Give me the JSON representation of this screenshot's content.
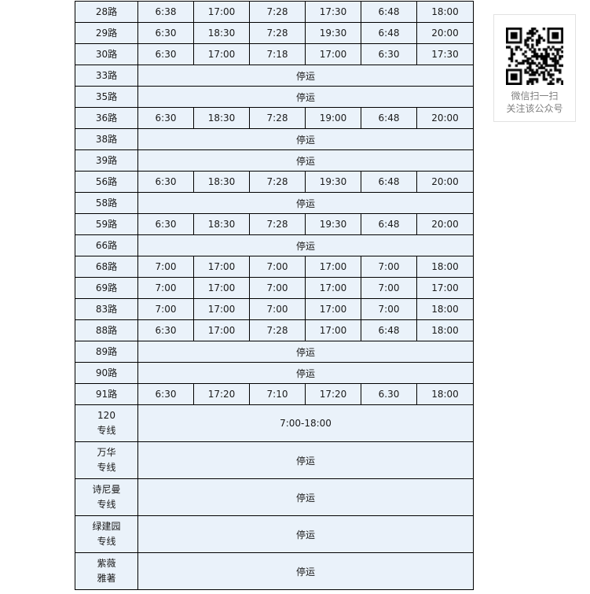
{
  "page": {
    "background": "#ffffff"
  },
  "table": {
    "border_color": "#000000",
    "cell_bg": "#eaf2fa",
    "text_color": "#1a1a1a",
    "suspended_label": "停运",
    "columns": {
      "name_width": 80,
      "time_width": 71,
      "time_columns": 6
    },
    "rows": [
      {
        "name": [
          "28路"
        ],
        "times": [
          "6:38",
          "17:00",
          "7:28",
          "17:30",
          "6:48",
          "18:00"
        ]
      },
      {
        "name": [
          "29路"
        ],
        "times": [
          "6:30",
          "18:30",
          "7:28",
          "19:30",
          "6:48",
          "20:00"
        ]
      },
      {
        "name": [
          "30路"
        ],
        "times": [
          "6:30",
          "17:00",
          "7:18",
          "17:00",
          "6:30",
          "17:30"
        ]
      },
      {
        "name": [
          "33路"
        ],
        "suspended": true
      },
      {
        "name": [
          "35路"
        ],
        "suspended": true
      },
      {
        "name": [
          "36路"
        ],
        "times": [
          "6:30",
          "18:30",
          "7:28",
          "19:00",
          "6:48",
          "20:00"
        ]
      },
      {
        "name": [
          "38路"
        ],
        "suspended": true
      },
      {
        "name": [
          "39路"
        ],
        "suspended": true
      },
      {
        "name": [
          "56路"
        ],
        "times": [
          "6:30",
          "18:30",
          "7:28",
          "19:30",
          "6:48",
          "20:00"
        ]
      },
      {
        "name": [
          "58路"
        ],
        "suspended": true
      },
      {
        "name": [
          "59路"
        ],
        "times": [
          "6:30",
          "18:30",
          "7:28",
          "19:30",
          "6:48",
          "20:00"
        ]
      },
      {
        "name": [
          "66路"
        ],
        "suspended": true
      },
      {
        "name": [
          "68路"
        ],
        "times": [
          "7:00",
          "17:00",
          "7:00",
          "17:00",
          "7:00",
          "18:00"
        ]
      },
      {
        "name": [
          "69路"
        ],
        "times": [
          "7:00",
          "17:00",
          "7:00",
          "17:00",
          "7:00",
          "17:00"
        ]
      },
      {
        "name": [
          "83路"
        ],
        "times": [
          "7:00",
          "17:00",
          "7:00",
          "17:00",
          "7:00",
          "18:00"
        ]
      },
      {
        "name": [
          "88路"
        ],
        "times": [
          "6:30",
          "17:00",
          "7:28",
          "17:00",
          "6:48",
          "18:00"
        ]
      },
      {
        "name": [
          "89路"
        ],
        "suspended": true
      },
      {
        "name": [
          "90路"
        ],
        "suspended": true
      },
      {
        "name": [
          "91路"
        ],
        "times": [
          "6:30",
          "17:20",
          "7:10",
          "17:20",
          "6.30",
          "18:00"
        ]
      },
      {
        "name": [
          "120",
          "专线"
        ],
        "merged_text": "7:00-18:00",
        "tall": true
      },
      {
        "name": [
          "万华",
          "专线"
        ],
        "suspended": true,
        "tall": true
      },
      {
        "name": [
          "诗尼曼",
          "专线"
        ],
        "suspended": true,
        "tall": true
      },
      {
        "name": [
          "绿建园",
          "专线"
        ],
        "suspended": true,
        "tall": true
      },
      {
        "name": [
          "紫薇",
          "雅著"
        ],
        "suspended": true,
        "tall": true
      }
    ]
  },
  "qr_panel": {
    "caption_line1": "微信扫一扫",
    "caption_line2": "关注该公众号",
    "text_color": "#808080",
    "border_color": "#e2e2e2",
    "qr_dark_color": "#000000",
    "qr_light_color": "#ffffff"
  }
}
